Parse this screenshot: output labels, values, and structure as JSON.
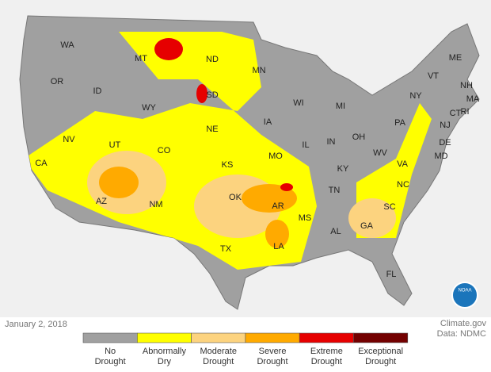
{
  "date": "January 2, 2018",
  "credits": [
    "Climate.gov",
    "Data: NDMC"
  ],
  "logo": "NOAA",
  "legend": [
    {
      "lines": [
        "No",
        "Drought"
      ],
      "color": "#a0a0a0"
    },
    {
      "lines": [
        "Abnormally",
        "Dry"
      ],
      "color": "#ffff00"
    },
    {
      "lines": [
        "Moderate",
        "Drought"
      ],
      "color": "#fcd37f"
    },
    {
      "lines": [
        "Severe",
        "Drought"
      ],
      "color": "#ffaa00"
    },
    {
      "lines": [
        "Extreme",
        "Drought"
      ],
      "color": "#e60000"
    },
    {
      "lines": [
        "Exceptional",
        "Drought"
      ],
      "color": "#730000"
    }
  ],
  "states": [
    "WA",
    "OR",
    "ID",
    "MT",
    "WY",
    "NV",
    "CA",
    "UT",
    "CO",
    "AZ",
    "NM",
    "ND",
    "SD",
    "NE",
    "KS",
    "OK",
    "TX",
    "MN",
    "IA",
    "MO",
    "AR",
    "LA",
    "WI",
    "IL",
    "MS",
    "MI",
    "IN",
    "KY",
    "TN",
    "AL",
    "OH",
    "WV",
    "GA",
    "FL",
    "PA",
    "VA",
    "NC",
    "SC",
    "NY",
    "VT",
    "ME",
    "NH",
    "MA",
    "CT",
    "RI",
    "NJ",
    "DE",
    "MD"
  ]
}
